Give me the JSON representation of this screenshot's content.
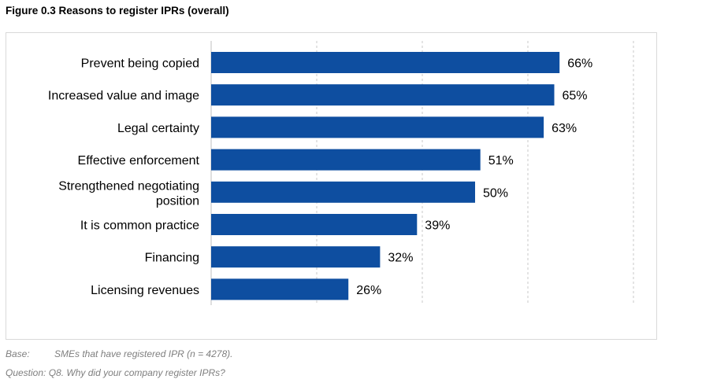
{
  "figure_title": "Figure 0.3 Reasons to register IPRs (overall)",
  "notes": {
    "base_key": "Base:",
    "base_text": "SMEs that have registered IPR (n = 4278).",
    "question_key": "Question:",
    "question_text": "Q8. Why did your company register IPRs?"
  },
  "colors": {
    "bar": "#0e4ea0",
    "grid": "#c8c8c8",
    "axis": "#bfbfbf"
  },
  "chart_data": {
    "type": "bar",
    "orientation": "horizontal",
    "categories": [
      [
        "Prevent being copied"
      ],
      [
        "Increased value and image"
      ],
      [
        "Legal certainty"
      ],
      [
        "Effective enforcement"
      ],
      [
        "Strengthened negotiating",
        "position"
      ],
      [
        "It is common practice"
      ],
      [
        "Financing"
      ],
      [
        "Licensing revenues"
      ]
    ],
    "values": [
      66,
      65,
      63,
      51,
      50,
      39,
      32,
      26
    ],
    "value_labels": [
      "66%",
      "65%",
      "63%",
      "51%",
      "50%",
      "39%",
      "32%",
      "26%"
    ],
    "xlim": [
      0,
      80
    ],
    "grid": "vertical dashed",
    "legend": "none"
  }
}
